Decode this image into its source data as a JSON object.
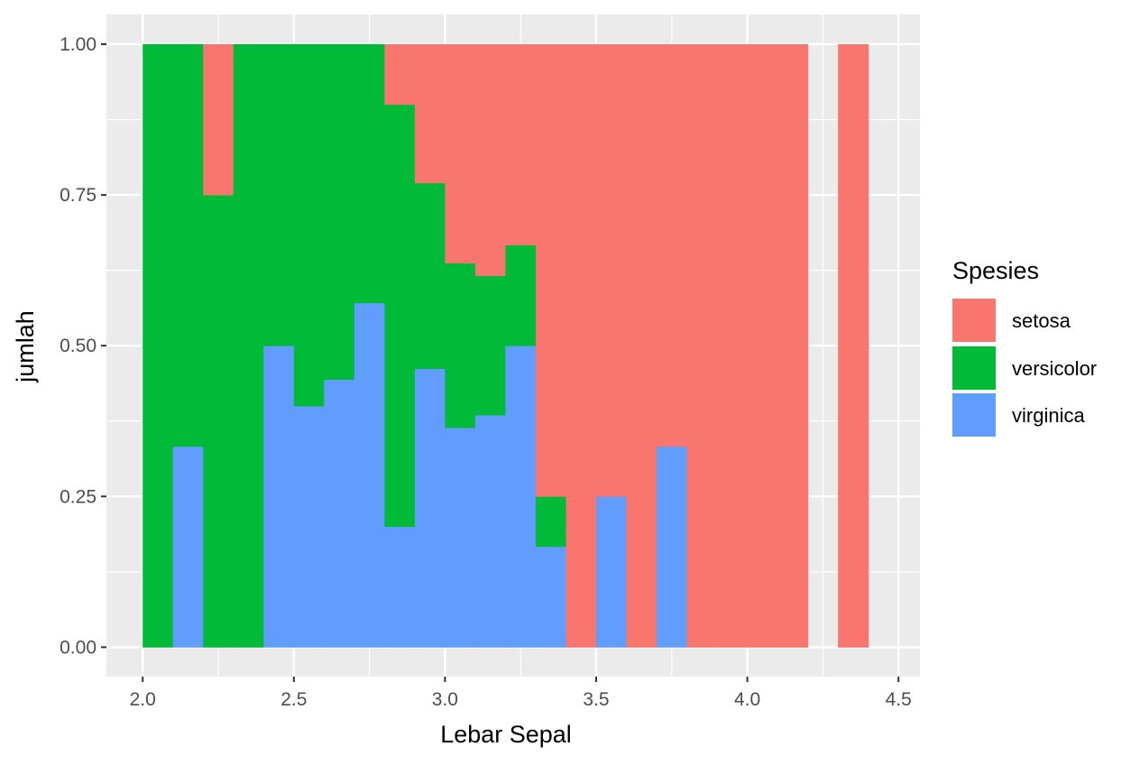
{
  "colors": {
    "setosa": "#F8766D",
    "versicolor": "#00BA38",
    "virginica": "#619CFF",
    "panel_bg": "#EBEBEB",
    "grid": "#FFFFFF"
  },
  "chart_data": {
    "type": "bar",
    "stacked": "fill",
    "xlabel": "Lebar Sepal",
    "ylabel": "jumlah",
    "xlim": [
      2.0,
      4.5
    ],
    "ylim": [
      0,
      1
    ],
    "x_ticks": [
      "2.0",
      "2.5",
      "3.0",
      "3.5",
      "4.0",
      "4.5"
    ],
    "y_ticks": [
      "0.00",
      "0.25",
      "0.50",
      "0.75",
      "1.00"
    ],
    "bin_width": 0.1,
    "grid": true,
    "legend_position": "right",
    "legend_title": "Spesies",
    "series_order": [
      "virginica",
      "versicolor",
      "setosa"
    ],
    "series": [
      {
        "name": "setosa",
        "color": "#F8766D"
      },
      {
        "name": "versicolor",
        "color": "#00BA38"
      },
      {
        "name": "virginica",
        "color": "#619CFF"
      }
    ],
    "bins": [
      {
        "x0": 2.0,
        "x1": 2.1,
        "virginica": 0.0,
        "versicolor": 1.0,
        "setosa": 0.0
      },
      {
        "x0": 2.1,
        "x1": 2.2,
        "virginica": 0.333,
        "versicolor": 0.667,
        "setosa": 0.0
      },
      {
        "x0": 2.2,
        "x1": 2.3,
        "virginica": 0.0,
        "versicolor": 0.75,
        "setosa": 0.25
      },
      {
        "x0": 2.3,
        "x1": 2.4,
        "virginica": 0.0,
        "versicolor": 1.0,
        "setosa": 0.0
      },
      {
        "x0": 2.4,
        "x1": 2.5,
        "virginica": 0.5,
        "versicolor": 0.5,
        "setosa": 0.0
      },
      {
        "x0": 2.5,
        "x1": 2.6,
        "virginica": 0.4,
        "versicolor": 0.6,
        "setosa": 0.0
      },
      {
        "x0": 2.6,
        "x1": 2.7,
        "virginica": 0.444,
        "versicolor": 0.556,
        "setosa": 0.0
      },
      {
        "x0": 2.7,
        "x1": 2.8,
        "virginica": 0.571,
        "versicolor": 0.429,
        "setosa": 0.0
      },
      {
        "x0": 2.8,
        "x1": 2.9,
        "virginica": 0.2,
        "versicolor": 0.7,
        "setosa": 0.1
      },
      {
        "x0": 2.9,
        "x1": 3.0,
        "virginica": 0.462,
        "versicolor": 0.308,
        "setosa": 0.23
      },
      {
        "x0": 3.0,
        "x1": 3.1,
        "virginica": 0.364,
        "versicolor": 0.273,
        "setosa": 0.363
      },
      {
        "x0": 3.1,
        "x1": 3.2,
        "virginica": 0.385,
        "versicolor": 0.231,
        "setosa": 0.384
      },
      {
        "x0": 3.2,
        "x1": 3.3,
        "virginica": 0.5,
        "versicolor": 0.167,
        "setosa": 0.333
      },
      {
        "x0": 3.3,
        "x1": 3.4,
        "virginica": 0.167,
        "versicolor": 0.083,
        "setosa": 0.75
      },
      {
        "x0": 3.4,
        "x1": 3.5,
        "virginica": 0.0,
        "versicolor": 0.0,
        "setosa": 1.0
      },
      {
        "x0": 3.5,
        "x1": 3.6,
        "virginica": 0.25,
        "versicolor": 0.0,
        "setosa": 0.75
      },
      {
        "x0": 3.6,
        "x1": 3.7,
        "virginica": 0.0,
        "versicolor": 0.0,
        "setosa": 1.0
      },
      {
        "x0": 3.7,
        "x1": 3.8,
        "virginica": 0.333,
        "versicolor": 0.0,
        "setosa": 0.667
      },
      {
        "x0": 3.8,
        "x1": 3.9,
        "virginica": 0.0,
        "versicolor": 0.0,
        "setosa": 1.0
      },
      {
        "x0": 3.9,
        "x1": 4.0,
        "virginica": 0.0,
        "versicolor": 0.0,
        "setosa": 1.0
      },
      {
        "x0": 4.0,
        "x1": 4.1,
        "virginica": 0.0,
        "versicolor": 0.0,
        "setosa": 1.0
      },
      {
        "x0": 4.1,
        "x1": 4.2,
        "virginica": 0.0,
        "versicolor": 0.0,
        "setosa": 1.0
      },
      {
        "x0": 4.3,
        "x1": 4.4,
        "virginica": 0.0,
        "versicolor": 0.0,
        "setosa": 1.0
      }
    ]
  }
}
